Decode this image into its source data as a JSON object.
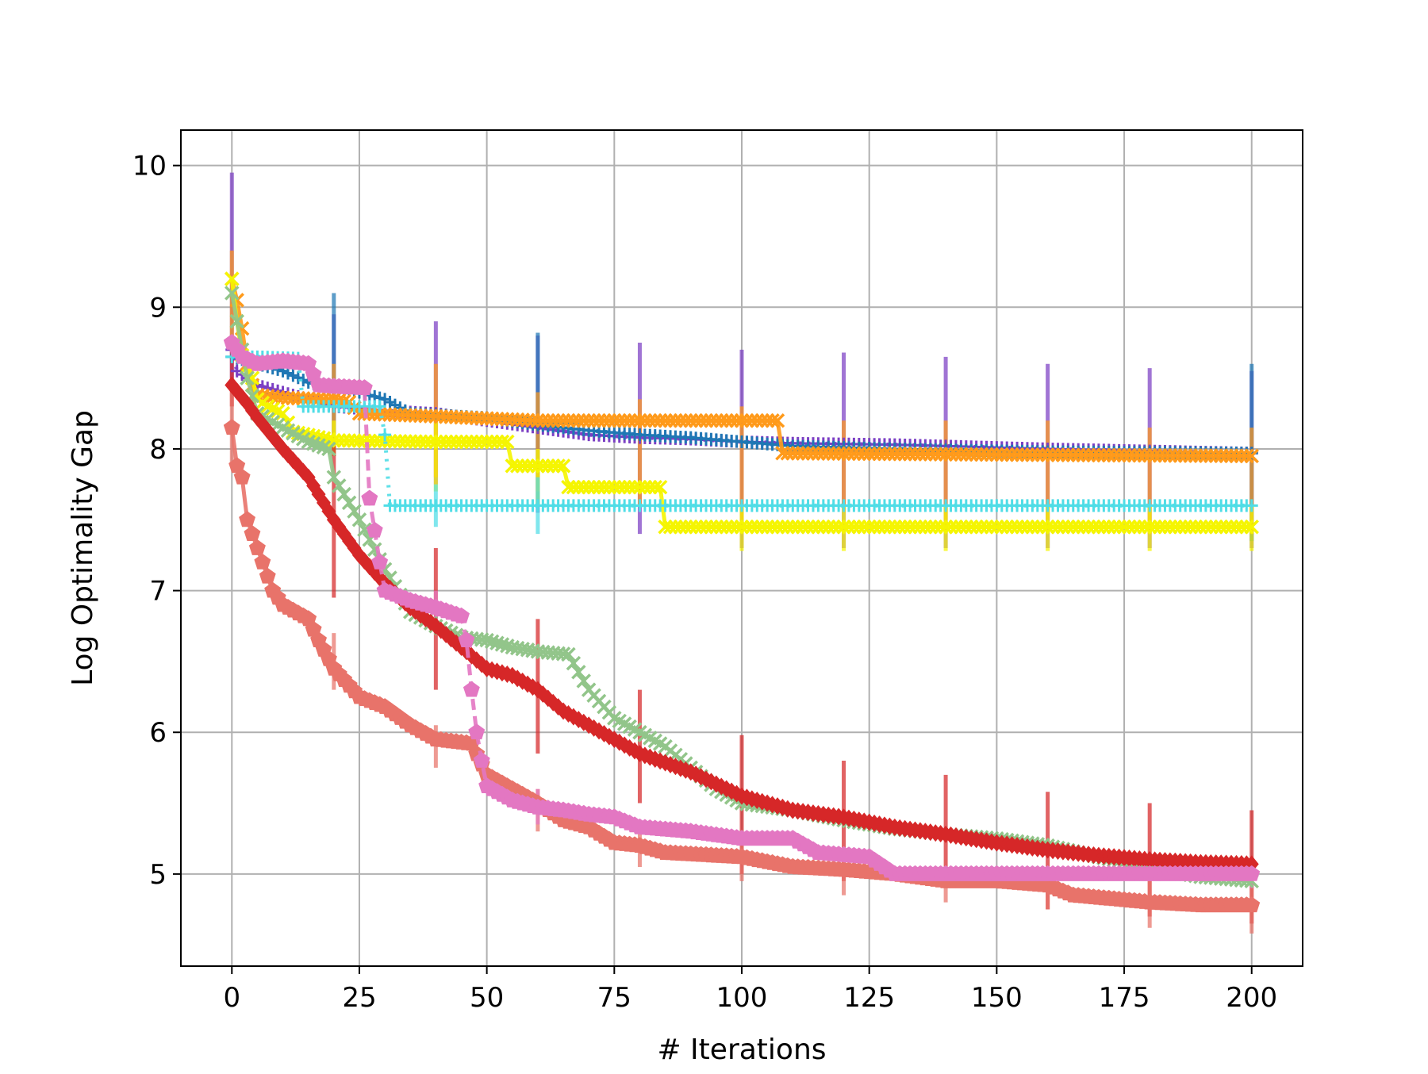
{
  "chart_data": {
    "type": "line",
    "title": "",
    "xlabel": "# Iterations",
    "ylabel": "Log Optimality Gap",
    "xlim": [
      -10,
      210
    ],
    "ylim": [
      4.35,
      10.25
    ],
    "xticks": [
      0,
      25,
      50,
      75,
      100,
      125,
      150,
      175,
      200
    ],
    "yticks": [
      5,
      6,
      7,
      8,
      9,
      10
    ],
    "grid": true,
    "legend": "none",
    "series": [
      {
        "color": "#7b3fc4",
        "marker": "plus",
        "linestyle": "dotted",
        "points": [
          [
            0,
            8.7
          ],
          [
            1,
            8.55
          ],
          [
            3,
            8.5
          ],
          [
            5,
            8.45
          ],
          [
            10,
            8.4
          ],
          [
            15,
            8.35
          ],
          [
            20,
            8.3
          ],
          [
            30,
            8.27
          ],
          [
            40,
            8.25
          ],
          [
            50,
            8.2
          ],
          [
            60,
            8.15
          ],
          [
            70,
            8.1
          ],
          [
            80,
            8.08
          ],
          [
            90,
            8.07
          ],
          [
            100,
            8.05
          ],
          [
            110,
            8.04
          ],
          [
            130,
            8.03
          ],
          [
            160,
            8.0
          ],
          [
            200,
            7.97
          ]
        ],
        "errorbars": [
          [
            0,
            8.5,
            9.95
          ],
          [
            20,
            7.95,
            8.95
          ],
          [
            40,
            7.75,
            8.9
          ],
          [
            60,
            7.55,
            8.8
          ],
          [
            80,
            7.4,
            8.75
          ],
          [
            100,
            7.3,
            8.7
          ],
          [
            120,
            7.3,
            8.68
          ],
          [
            140,
            7.3,
            8.65
          ],
          [
            160,
            7.3,
            8.6
          ],
          [
            180,
            7.3,
            8.57
          ],
          [
            200,
            7.3,
            8.55
          ]
        ]
      },
      {
        "color": "#1f77b4",
        "marker": "plus",
        "linestyle": "dotted",
        "points": [
          [
            0,
            8.65
          ],
          [
            5,
            8.6
          ],
          [
            10,
            8.55
          ],
          [
            15,
            8.47
          ],
          [
            20,
            8.43
          ],
          [
            25,
            8.4
          ],
          [
            30,
            8.35
          ],
          [
            35,
            8.25
          ],
          [
            50,
            8.22
          ],
          [
            60,
            8.17
          ],
          [
            70,
            8.13
          ],
          [
            80,
            8.1
          ],
          [
            90,
            8.08
          ],
          [
            100,
            8.05
          ],
          [
            110,
            8.02
          ],
          [
            130,
            8.0
          ],
          [
            160,
            7.98
          ],
          [
            200,
            7.97
          ]
        ],
        "errorbars": [
          [
            20,
            8.0,
            9.1
          ],
          [
            60,
            7.6,
            8.82
          ],
          [
            200,
            7.35,
            8.6
          ]
        ]
      },
      {
        "color": "#ff9a1a",
        "marker": "x",
        "linestyle": "solid",
        "points": [
          [
            0,
            9.2
          ],
          [
            1,
            9.05
          ],
          [
            2,
            8.85
          ],
          [
            3,
            8.6
          ],
          [
            4,
            8.45
          ],
          [
            5,
            8.38
          ],
          [
            10,
            8.36
          ],
          [
            20,
            8.35
          ],
          [
            23,
            8.33
          ],
          [
            25,
            8.25
          ],
          [
            40,
            8.23
          ],
          [
            60,
            8.2
          ],
          [
            80,
            8.2
          ],
          [
            100,
            8.2
          ],
          [
            107,
            8.2
          ],
          [
            108,
            7.97
          ],
          [
            150,
            7.96
          ],
          [
            200,
            7.95
          ]
        ],
        "errorbars": [
          [
            0,
            8.8,
            9.4
          ],
          [
            20,
            8.0,
            8.6
          ],
          [
            40,
            7.8,
            8.6
          ],
          [
            60,
            7.7,
            8.4
          ],
          [
            80,
            7.6,
            8.35
          ],
          [
            100,
            7.5,
            8.3
          ],
          [
            120,
            7.6,
            8.2
          ],
          [
            140,
            7.5,
            8.2
          ],
          [
            160,
            7.5,
            8.2
          ],
          [
            180,
            7.4,
            8.15
          ],
          [
            200,
            7.4,
            8.15
          ]
        ]
      },
      {
        "color": "#f5f500",
        "marker": "x",
        "linestyle": "solid",
        "points": [
          [
            0,
            9.2
          ],
          [
            1,
            8.9
          ],
          [
            2,
            8.66
          ],
          [
            4,
            8.5
          ],
          [
            5,
            8.35
          ],
          [
            7,
            8.3
          ],
          [
            10,
            8.25
          ],
          [
            12,
            8.12
          ],
          [
            20,
            8.06
          ],
          [
            40,
            8.05
          ],
          [
            54,
            8.05
          ],
          [
            55,
            7.88
          ],
          [
            65,
            7.88
          ],
          [
            66,
            7.73
          ],
          [
            84,
            7.73
          ],
          [
            85,
            7.45
          ],
          [
            120,
            7.45
          ],
          [
            200,
            7.45
          ]
        ],
        "errorbars": [
          [
            20,
            7.95,
            8.2
          ],
          [
            40,
            7.7,
            8.2
          ],
          [
            60,
            7.6,
            8.0
          ],
          [
            100,
            7.28,
            7.6
          ],
          [
            120,
            7.28,
            7.6
          ],
          [
            140,
            7.28,
            7.6
          ],
          [
            160,
            7.28,
            7.6
          ],
          [
            180,
            7.28,
            7.6
          ],
          [
            200,
            7.28,
            7.6
          ]
        ]
      },
      {
        "color": "#4fdde6",
        "marker": "plus",
        "linestyle": "dotted",
        "points": [
          [
            0,
            8.65
          ],
          [
            3,
            8.65
          ],
          [
            5,
            8.65
          ],
          [
            13,
            8.64
          ],
          [
            14,
            8.3
          ],
          [
            20,
            8.3
          ],
          [
            29,
            8.3
          ],
          [
            30,
            8.1
          ],
          [
            31,
            7.6
          ],
          [
            60,
            7.6
          ],
          [
            100,
            7.6
          ],
          [
            150,
            7.6
          ],
          [
            200,
            7.6
          ]
        ],
        "errorbars": [
          [
            40,
            7.45,
            7.75
          ],
          [
            60,
            7.4,
            7.8
          ]
        ]
      },
      {
        "color": "#92c58a",
        "marker": "x",
        "linestyle": "solid",
        "points": [
          [
            0,
            9.1
          ],
          [
            3,
            8.5
          ],
          [
            5,
            8.25
          ],
          [
            10,
            8.15
          ],
          [
            15,
            8.05
          ],
          [
            19,
            8.0
          ],
          [
            20,
            7.8
          ],
          [
            25,
            7.5
          ],
          [
            30,
            7.15
          ],
          [
            35,
            6.85
          ],
          [
            40,
            6.75
          ],
          [
            45,
            6.67
          ],
          [
            50,
            6.65
          ],
          [
            55,
            6.6
          ],
          [
            60,
            6.57
          ],
          [
            66,
            6.55
          ],
          [
            70,
            6.3
          ],
          [
            75,
            6.1
          ],
          [
            80,
            6.0
          ],
          [
            85,
            5.9
          ],
          [
            90,
            5.75
          ],
          [
            95,
            5.6
          ],
          [
            100,
            5.5
          ],
          [
            110,
            5.45
          ],
          [
            120,
            5.38
          ],
          [
            130,
            5.32
          ],
          [
            140,
            5.28
          ],
          [
            150,
            5.25
          ],
          [
            160,
            5.2
          ],
          [
            170,
            5.12
          ],
          [
            180,
            5.05
          ],
          [
            190,
            4.98
          ],
          [
            200,
            4.95
          ]
        ],
        "errorbars": []
      },
      {
        "color": "#d62728",
        "marker": "diamond",
        "linestyle": "solid",
        "points": [
          [
            0,
            8.45
          ],
          [
            3,
            8.32
          ],
          [
            5,
            8.22
          ],
          [
            10,
            8.0
          ],
          [
            15,
            7.8
          ],
          [
            20,
            7.5
          ],
          [
            25,
            7.25
          ],
          [
            30,
            7.05
          ],
          [
            35,
            6.88
          ],
          [
            40,
            6.75
          ],
          [
            45,
            6.6
          ],
          [
            50,
            6.45
          ],
          [
            55,
            6.4
          ],
          [
            60,
            6.3
          ],
          [
            65,
            6.15
          ],
          [
            70,
            6.05
          ],
          [
            75,
            5.95
          ],
          [
            80,
            5.85
          ],
          [
            90,
            5.72
          ],
          [
            100,
            5.55
          ],
          [
            110,
            5.45
          ],
          [
            120,
            5.4
          ],
          [
            130,
            5.33
          ],
          [
            140,
            5.28
          ],
          [
            150,
            5.22
          ],
          [
            160,
            5.17
          ],
          [
            170,
            5.13
          ],
          [
            180,
            5.1
          ],
          [
            190,
            5.08
          ],
          [
            200,
            5.07
          ]
        ],
        "errorbars": [
          [
            0,
            8.3,
            8.7
          ],
          [
            20,
            6.95,
            8.05
          ],
          [
            40,
            6.3,
            7.3
          ],
          [
            60,
            5.85,
            6.8
          ],
          [
            80,
            5.5,
            6.3
          ],
          [
            100,
            5.0,
            5.98
          ],
          [
            120,
            4.95,
            5.8
          ],
          [
            140,
            4.9,
            5.7
          ],
          [
            160,
            4.75,
            5.58
          ],
          [
            180,
            4.7,
            5.5
          ],
          [
            200,
            4.65,
            5.45
          ]
        ]
      },
      {
        "color": "#e8736a",
        "marker": "pentagon",
        "linestyle": "solid",
        "points": [
          [
            0,
            8.15
          ],
          [
            1,
            7.88
          ],
          [
            2,
            7.8
          ],
          [
            3,
            7.5
          ],
          [
            5,
            7.3
          ],
          [
            8,
            7.0
          ],
          [
            10,
            6.9
          ],
          [
            15,
            6.8
          ],
          [
            17,
            6.65
          ],
          [
            20,
            6.45
          ],
          [
            25,
            6.25
          ],
          [
            30,
            6.18
          ],
          [
            35,
            6.05
          ],
          [
            40,
            5.95
          ],
          [
            47,
            5.92
          ],
          [
            50,
            5.7
          ],
          [
            55,
            5.6
          ],
          [
            60,
            5.5
          ],
          [
            65,
            5.38
          ],
          [
            70,
            5.33
          ],
          [
            75,
            5.22
          ],
          [
            80,
            5.2
          ],
          [
            85,
            5.15
          ],
          [
            100,
            5.12
          ],
          [
            110,
            5.05
          ],
          [
            120,
            5.03
          ],
          [
            130,
            5.0
          ],
          [
            140,
            4.95
          ],
          [
            150,
            4.95
          ],
          [
            160,
            4.92
          ],
          [
            165,
            4.85
          ],
          [
            180,
            4.8
          ],
          [
            190,
            4.78
          ],
          [
            200,
            4.78
          ]
        ],
        "errorbars": [
          [
            0,
            7.9,
            8.4
          ],
          [
            20,
            6.3,
            6.7
          ],
          [
            40,
            5.75,
            6.05
          ],
          [
            60,
            5.3,
            5.6
          ],
          [
            80,
            5.05,
            5.35
          ],
          [
            100,
            4.95,
            5.2
          ],
          [
            120,
            4.85,
            5.1
          ],
          [
            140,
            4.8,
            5.0
          ],
          [
            160,
            4.75,
            5.0
          ],
          [
            180,
            4.62,
            4.95
          ],
          [
            200,
            4.58,
            4.95
          ]
        ]
      },
      {
        "color": "#e377c2",
        "marker": "pentagon",
        "linestyle": "dashed",
        "points": [
          [
            0,
            8.75
          ],
          [
            2,
            8.65
          ],
          [
            5,
            8.6
          ],
          [
            10,
            8.62
          ],
          [
            15,
            8.6
          ],
          [
            17,
            8.45
          ],
          [
            20,
            8.44
          ],
          [
            26,
            8.43
          ],
          [
            27,
            7.65
          ],
          [
            29,
            7.2
          ],
          [
            30,
            7.0
          ],
          [
            35,
            6.93
          ],
          [
            40,
            6.88
          ],
          [
            45,
            6.82
          ],
          [
            46,
            6.65
          ],
          [
            47,
            6.3
          ],
          [
            48,
            6.0
          ],
          [
            49,
            5.8
          ],
          [
            50,
            5.62
          ],
          [
            55,
            5.52
          ],
          [
            60,
            5.47
          ],
          [
            65,
            5.45
          ],
          [
            70,
            5.42
          ],
          [
            75,
            5.4
          ],
          [
            80,
            5.33
          ],
          [
            90,
            5.3
          ],
          [
            100,
            5.25
          ],
          [
            110,
            5.25
          ],
          [
            115,
            5.15
          ],
          [
            125,
            5.12
          ],
          [
            130,
            5.0
          ],
          [
            150,
            5.0
          ],
          [
            200,
            5.0
          ]
        ],
        "errorbars": [
          [
            40,
            6.7,
            7.0
          ],
          [
            60,
            5.35,
            5.6
          ],
          [
            200,
            4.9,
            5.1
          ]
        ]
      }
    ]
  }
}
